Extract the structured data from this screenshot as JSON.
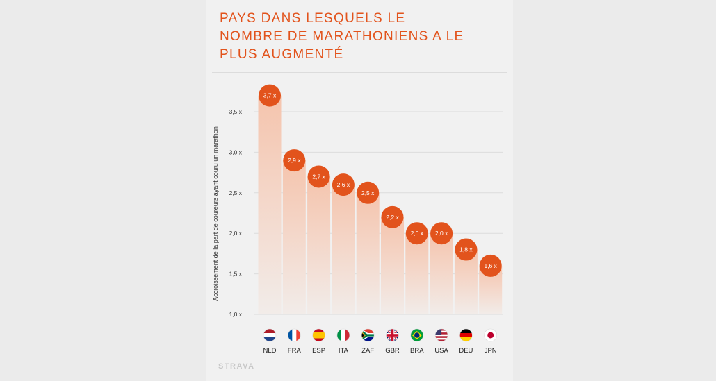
{
  "title": "PAYS DANS LESQUELS LE\nNOMBRE DE MARATHONIENS A LE\nPLUS AUGMENTÉ",
  "brand": "STRAVA",
  "colors": {
    "accent": "#e2531c",
    "bar_top": "#f5c4ad",
    "bar_bottom": "#f2ece9",
    "grid": "#dcdcdc"
  },
  "chart_data": {
    "type": "bar",
    "ylabel": "Accroissement de la part de coureurs ayant couru un marathon",
    "xlabel": "",
    "ylim": [
      1.0,
      3.7
    ],
    "yticks": [
      1.0,
      1.5,
      2.0,
      2.5,
      3.0,
      3.5
    ],
    "ytick_labels": [
      "1,0 x",
      "1,5 x",
      "2,0 x",
      "2,5 x",
      "3,0 x",
      "3,5 x"
    ],
    "categories": [
      "NLD",
      "FRA",
      "ESP",
      "ITA",
      "ZAF",
      "GBR",
      "BRA",
      "USA",
      "DEU",
      "JPN"
    ],
    "values": [
      3.7,
      2.9,
      2.7,
      2.6,
      2.5,
      2.2,
      2.0,
      2.0,
      1.8,
      1.6
    ],
    "value_labels": [
      "3,7 x",
      "2,9 x",
      "2,7 x",
      "2,6 x",
      "2,5 x",
      "2,2 x",
      "2,0 x",
      "2,0 x",
      "1,8 x",
      "1,6 x"
    ],
    "flags": [
      "netherlands-flag-icon",
      "france-flag-icon",
      "spain-flag-icon",
      "italy-flag-icon",
      "south-africa-flag-icon",
      "uk-flag-icon",
      "brazil-flag-icon",
      "usa-flag-icon",
      "germany-flag-icon",
      "japan-flag-icon"
    ],
    "grid": true,
    "legend": "none"
  }
}
